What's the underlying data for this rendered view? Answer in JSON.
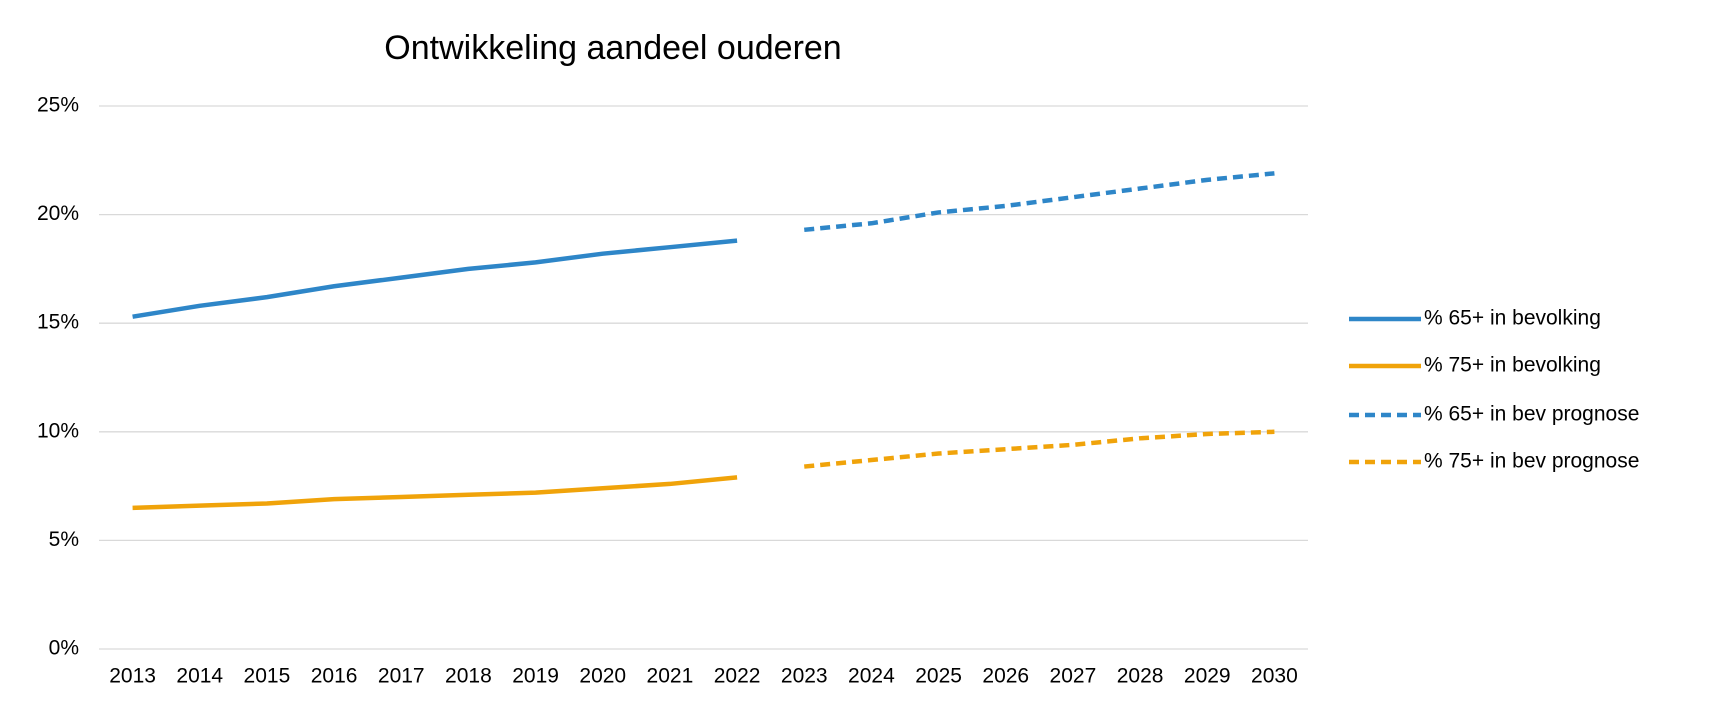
{
  "chart_data": {
    "type": "line",
    "title": "Ontwikkeling aandeel ouderen",
    "categories": [
      "2013",
      "2014",
      "2015",
      "2016",
      "2017",
      "2018",
      "2019",
      "2020",
      "2021",
      "2022",
      "2023",
      "2024",
      "2025",
      "2026",
      "2027",
      "2028",
      "2029",
      "2030"
    ],
    "series": [
      {
        "name": "% 65+ in bevolking",
        "color": "#2e86c8",
        "dashed": false,
        "values": [
          15.3,
          15.8,
          16.2,
          16.7,
          17.1,
          17.5,
          17.8,
          18.2,
          18.5,
          18.8,
          null,
          null,
          null,
          null,
          null,
          null,
          null,
          null
        ]
      },
      {
        "name": "% 75+ in bevolking",
        "color": "#f0a30a",
        "dashed": false,
        "values": [
          6.5,
          6.6,
          6.7,
          6.9,
          7.0,
          7.1,
          7.2,
          7.4,
          7.6,
          7.9,
          null,
          null,
          null,
          null,
          null,
          null,
          null,
          null
        ]
      },
      {
        "name": "% 65+ in bev prognose",
        "color": "#2e86c8",
        "dashed": true,
        "values": [
          null,
          null,
          null,
          null,
          null,
          null,
          null,
          null,
          null,
          null,
          19.3,
          19.6,
          20.1,
          20.4,
          20.8,
          21.2,
          21.6,
          21.9
        ]
      },
      {
        "name": "% 75+ in bev prognose",
        "color": "#f0a30a",
        "dashed": true,
        "values": [
          null,
          null,
          null,
          null,
          null,
          null,
          null,
          null,
          null,
          null,
          8.4,
          8.7,
          9.0,
          9.2,
          9.4,
          9.7,
          9.9,
          10.0
        ]
      }
    ],
    "ylim": [
      0,
      25
    ],
    "yticks": [
      {
        "value": 0,
        "label": "0%"
      },
      {
        "value": 5,
        "label": "5%"
      },
      {
        "value": 10,
        "label": "10%"
      },
      {
        "value": 15,
        "label": "15%"
      },
      {
        "value": 20,
        "label": "20%"
      },
      {
        "value": 25,
        "label": "25%"
      }
    ],
    "grid": true,
    "legend": "right"
  }
}
